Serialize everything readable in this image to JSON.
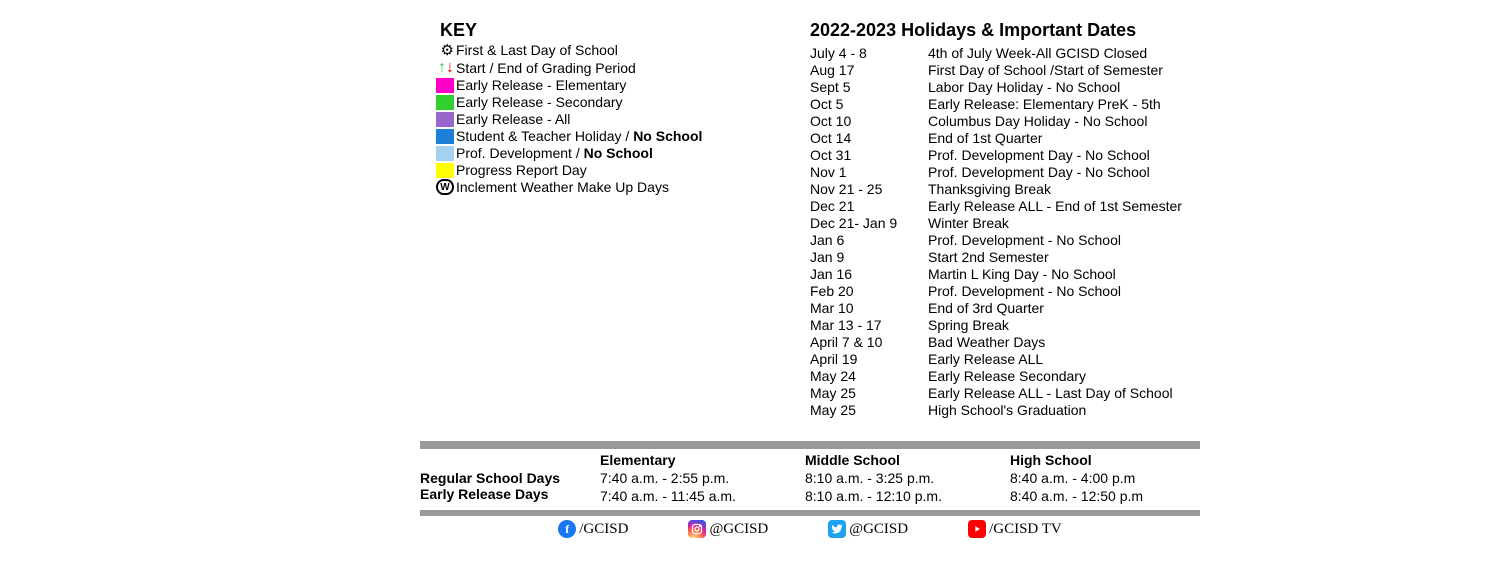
{
  "key": {
    "title": "KEY",
    "items": [
      {
        "icon": "gear",
        "label": "First & Last Day of School"
      },
      {
        "icon": "arrows",
        "label": "Start / End of Grading Period"
      },
      {
        "icon": "swatch",
        "color": "#ff00c8",
        "label": "Early Release - Elementary"
      },
      {
        "icon": "swatch",
        "color": "#30d030",
        "label": "Early Release - Secondary"
      },
      {
        "icon": "swatch",
        "color": "#9966cc",
        "label": "Early Release - All"
      },
      {
        "icon": "swatch",
        "color": "#1e7fd6",
        "label_html": "Student & Teacher Holiday / <b>No School</b>"
      },
      {
        "icon": "swatch",
        "color": "#a6d0f0",
        "label_html": "Prof. Development / <b>No School</b>"
      },
      {
        "icon": "swatch",
        "color": "#ffff00",
        "label": "Progress Report Day"
      },
      {
        "icon": "w-badge",
        "label": "Inclement Weather Make Up Days"
      }
    ]
  },
  "dates": {
    "title": "2022-2023 Holidays & Important Dates",
    "rows": [
      {
        "d": "July 4 - 8",
        "t": "4th of July Week-All GCISD Closed"
      },
      {
        "d": "Aug 17",
        "t": "First Day of School /Start of Semester"
      },
      {
        "d": "Sept 5",
        "t": "Labor Day Holiday - No School"
      },
      {
        "d": "Oct 5",
        "t": "Early Release: Elementary PreK - 5th"
      },
      {
        "d": "Oct 10",
        "t": "Columbus Day Holiday - No School"
      },
      {
        "d": "Oct 14",
        "t": "End of 1st Quarter"
      },
      {
        "d": "Oct 31",
        "t": "Prof. Development Day - No School"
      },
      {
        "d": "Nov 1",
        "t": "Prof. Development Day - No School"
      },
      {
        "d": "Nov 21 - 25",
        "t": "Thanksgiving Break"
      },
      {
        "d": "Dec 21",
        "t": "Early Release ALL - End of 1st Semester"
      },
      {
        "d": "Dec 21- Jan 9",
        "t": "Winter Break"
      },
      {
        "d": "Jan 6",
        "t": "Prof. Development - No School"
      },
      {
        "d": "Jan 9",
        "t": "Start 2nd Semester"
      },
      {
        "d": "Jan 16",
        "t": "Martin L King  Day - No School"
      },
      {
        "d": "Feb 20",
        "t": "Prof. Development - No School"
      },
      {
        "d": "Mar 10",
        "t": " End of 3rd Quarter"
      },
      {
        "d": "Mar 13 - 17",
        "t": "Spring Break"
      },
      {
        "d": "April 7 & 10",
        "t": "Bad Weather Days"
      },
      {
        "d": "April 19",
        "t": "Early Release ALL"
      },
      {
        "d": "May 24",
        "t": "Early Release Secondary"
      },
      {
        "d": "May 25",
        "t": "Early Release ALL - Last Day of School"
      },
      {
        "d": "May 25",
        "t": "High School's Graduation"
      }
    ]
  },
  "times": {
    "row1_label": "Regular School Days",
    "row2_label": "Early Release Days",
    "cols": [
      {
        "hdr": "Elementary",
        "r1": "7:40 a.m. - 2:55 p.m.",
        "r2": "7:40 a.m. - 11:45 a.m."
      },
      {
        "hdr": "Middle School",
        "r1": "8:10 a.m. - 3:25 p.m.",
        "r2": "8:10 a.m. - 12:10 p.m."
      },
      {
        "hdr": "High School",
        "r1": "8:40 a.m. - 4:00 p.m",
        "r2": "8:40 a.m. - 12:50 p.m"
      }
    ]
  },
  "social": {
    "fb": "/GCISD",
    "ig": "@GCISD",
    "tw": "@GCISD",
    "yt": "/GCISD TV"
  }
}
